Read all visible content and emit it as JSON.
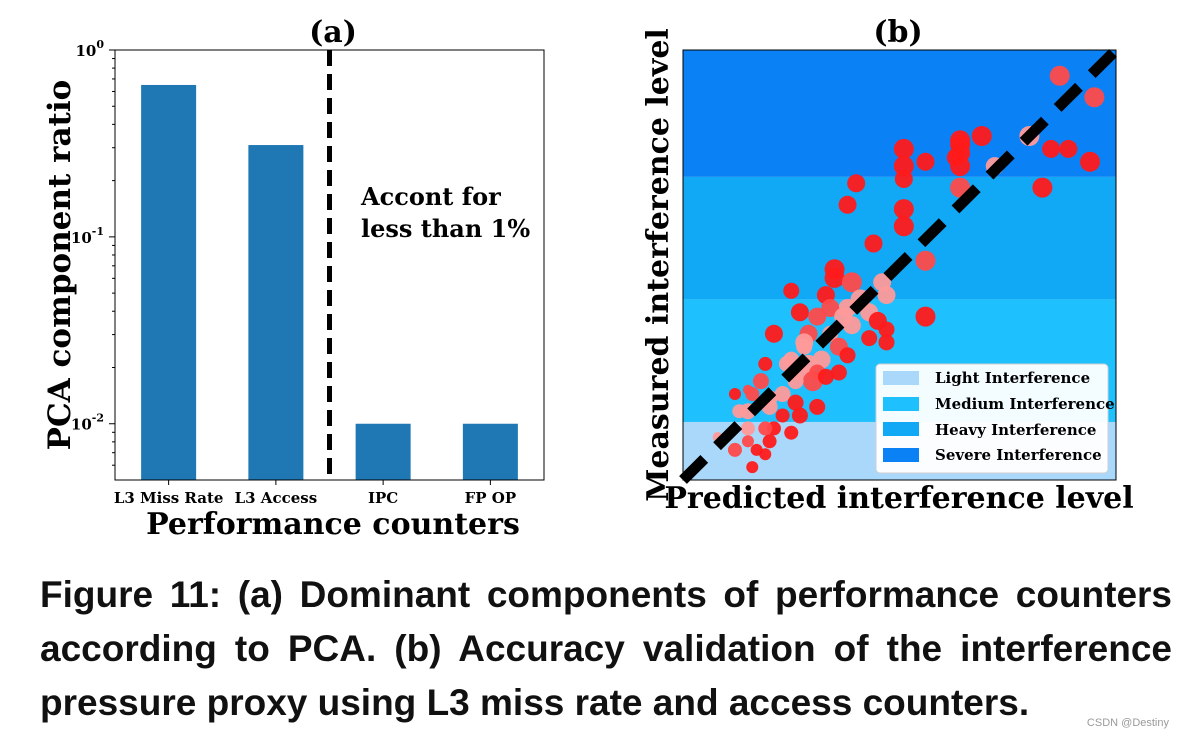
{
  "colors": {
    "bar": "#1f77b4",
    "light": "#a9d8fa",
    "medium": "#1ec0fd",
    "heavy": "#11a8f5",
    "severe": "#0a82f6",
    "divider": "#000000"
  },
  "chart_data": [
    {
      "type": "bar",
      "title": "(a)",
      "xlabel": "Performance counters",
      "ylabel": "PCA component ratio",
      "yscale": "log",
      "ylim": [
        0.005,
        1
      ],
      "yticks": [
        {
          "base": "10",
          "exp": "0"
        },
        {
          "base": "10",
          "exp": "-1"
        },
        {
          "base": "10",
          "exp": "-2"
        }
      ],
      "categories": [
        "L3 Miss Rate",
        "L3 Access",
        "IPC",
        "FP OP"
      ],
      "values": [
        0.65,
        0.31,
        0.01,
        0.01
      ],
      "divider_between": [
        1,
        2
      ],
      "annotation": [
        "Accont for",
        "less than 1%"
      ],
      "grid": false
    },
    {
      "type": "scatter",
      "title": "(b)",
      "xlabel": "Predicted interference level",
      "ylabel": "Measured interference level",
      "xlim": [
        0,
        1
      ],
      "ylim": [
        0,
        1
      ],
      "ticks": false,
      "bands": [
        {
          "name": "Light Interference",
          "from": 0.0,
          "to": 0.135,
          "color": "#a9d8fa"
        },
        {
          "name": "Medium Interference",
          "from": 0.135,
          "to": 0.42,
          "color": "#1ec0fd"
        },
        {
          "name": "Heavy Interference",
          "from": 0.42,
          "to": 0.705,
          "color": "#11a8f5"
        },
        {
          "name": "Severe Interference",
          "from": 0.705,
          "to": 1.0,
          "color": "#0a82f6"
        }
      ],
      "reference_line": {
        "x": [
          0,
          1
        ],
        "y": [
          0,
          1
        ],
        "style": "dashed",
        "color": "#000000"
      },
      "legend_position": "lower-right",
      "points": [
        {
          "x": 0.87,
          "y": 0.94,
          "s": 10
        },
        {
          "x": 0.95,
          "y": 0.89,
          "s": 10
        },
        {
          "x": 0.8,
          "y": 0.8,
          "s": 10
        },
        {
          "x": 0.85,
          "y": 0.77,
          "s": 9
        },
        {
          "x": 0.89,
          "y": 0.77,
          "s": 9
        },
        {
          "x": 0.94,
          "y": 0.74,
          "s": 10
        },
        {
          "x": 0.69,
          "y": 0.8,
          "s": 10
        },
        {
          "x": 0.64,
          "y": 0.79,
          "s": 10
        },
        {
          "x": 0.64,
          "y": 0.78,
          "s": 10
        },
        {
          "x": 0.64,
          "y": 0.76,
          "s": 10
        },
        {
          "x": 0.63,
          "y": 0.75,
          "s": 9
        },
        {
          "x": 0.72,
          "y": 0.73,
          "s": 9
        },
        {
          "x": 0.64,
          "y": 0.73,
          "s": 10
        },
        {
          "x": 0.56,
          "y": 0.74,
          "s": 9
        },
        {
          "x": 0.51,
          "y": 0.77,
          "s": 10
        },
        {
          "x": 0.51,
          "y": 0.73,
          "s": 10
        },
        {
          "x": 0.51,
          "y": 0.7,
          "s": 9
        },
        {
          "x": 0.83,
          "y": 0.68,
          "s": 10
        },
        {
          "x": 0.64,
          "y": 0.68,
          "s": 10
        },
        {
          "x": 0.4,
          "y": 0.69,
          "s": 9
        },
        {
          "x": 0.51,
          "y": 0.63,
          "s": 10
        },
        {
          "x": 0.51,
          "y": 0.59,
          "s": 10
        },
        {
          "x": 0.38,
          "y": 0.64,
          "s": 9
        },
        {
          "x": 0.44,
          "y": 0.55,
          "s": 9
        },
        {
          "x": 0.56,
          "y": 0.51,
          "s": 10
        },
        {
          "x": 0.35,
          "y": 0.49,
          "s": 10
        },
        {
          "x": 0.35,
          "y": 0.47,
          "s": 10
        },
        {
          "x": 0.39,
          "y": 0.46,
          "s": 10
        },
        {
          "x": 0.46,
          "y": 0.46,
          "s": 9
        },
        {
          "x": 0.33,
          "y": 0.43,
          "s": 9
        },
        {
          "x": 0.41,
          "y": 0.42,
          "s": 10
        },
        {
          "x": 0.47,
          "y": 0.43,
          "s": 9
        },
        {
          "x": 0.25,
          "y": 0.44,
          "s": 8
        },
        {
          "x": 0.38,
          "y": 0.4,
          "s": 9
        },
        {
          "x": 0.34,
          "y": 0.4,
          "s": 9
        },
        {
          "x": 0.43,
          "y": 0.39,
          "s": 9
        },
        {
          "x": 0.37,
          "y": 0.38,
          "s": 9
        },
        {
          "x": 0.45,
          "y": 0.37,
          "s": 9
        },
        {
          "x": 0.56,
          "y": 0.38,
          "s": 10
        },
        {
          "x": 0.47,
          "y": 0.35,
          "s": 8
        },
        {
          "x": 0.27,
          "y": 0.39,
          "s": 9
        },
        {
          "x": 0.31,
          "y": 0.38,
          "s": 9
        },
        {
          "x": 0.39,
          "y": 0.36,
          "s": 9
        },
        {
          "x": 0.43,
          "y": 0.33,
          "s": 8
        },
        {
          "x": 0.29,
          "y": 0.34,
          "s": 9
        },
        {
          "x": 0.34,
          "y": 0.34,
          "s": 8
        },
        {
          "x": 0.47,
          "y": 0.32,
          "s": 8
        },
        {
          "x": 0.36,
          "y": 0.31,
          "s": 9
        },
        {
          "x": 0.28,
          "y": 0.32,
          "s": 9
        },
        {
          "x": 0.21,
          "y": 0.34,
          "s": 9
        },
        {
          "x": 0.28,
          "y": 0.31,
          "s": 8
        },
        {
          "x": 0.32,
          "y": 0.28,
          "s": 9
        },
        {
          "x": 0.38,
          "y": 0.29,
          "s": 8
        },
        {
          "x": 0.25,
          "y": 0.28,
          "s": 8
        },
        {
          "x": 0.29,
          "y": 0.27,
          "s": 9
        },
        {
          "x": 0.24,
          "y": 0.27,
          "s": 8
        },
        {
          "x": 0.27,
          "y": 0.25,
          "s": 8
        },
        {
          "x": 0.31,
          "y": 0.25,
          "s": 8
        },
        {
          "x": 0.3,
          "y": 0.23,
          "s": 10
        },
        {
          "x": 0.33,
          "y": 0.24,
          "s": 8
        },
        {
          "x": 0.19,
          "y": 0.27,
          "s": 7
        },
        {
          "x": 0.36,
          "y": 0.25,
          "s": 8
        },
        {
          "x": 0.18,
          "y": 0.23,
          "s": 8
        },
        {
          "x": 0.26,
          "y": 0.23,
          "s": 8
        },
        {
          "x": 0.2,
          "y": 0.19,
          "s": 8
        },
        {
          "x": 0.15,
          "y": 0.21,
          "s": 5
        },
        {
          "x": 0.12,
          "y": 0.2,
          "s": 6
        },
        {
          "x": 0.16,
          "y": 0.2,
          "s": 7
        },
        {
          "x": 0.23,
          "y": 0.2,
          "s": 8
        },
        {
          "x": 0.26,
          "y": 0.18,
          "s": 8
        },
        {
          "x": 0.31,
          "y": 0.17,
          "s": 8
        },
        {
          "x": 0.2,
          "y": 0.17,
          "s": 8
        },
        {
          "x": 0.15,
          "y": 0.16,
          "s": 8
        },
        {
          "x": 0.23,
          "y": 0.15,
          "s": 7
        },
        {
          "x": 0.13,
          "y": 0.16,
          "s": 7
        },
        {
          "x": 0.27,
          "y": 0.15,
          "s": 8
        },
        {
          "x": 0.21,
          "y": 0.12,
          "s": 7
        },
        {
          "x": 0.19,
          "y": 0.12,
          "s": 7
        },
        {
          "x": 0.15,
          "y": 0.12,
          "s": 7
        },
        {
          "x": 0.25,
          "y": 0.11,
          "s": 7
        },
        {
          "x": 0.2,
          "y": 0.09,
          "s": 7
        },
        {
          "x": 0.15,
          "y": 0.09,
          "s": 6
        },
        {
          "x": 0.08,
          "y": 0.1,
          "s": 5
        },
        {
          "x": 0.12,
          "y": 0.07,
          "s": 7
        },
        {
          "x": 0.19,
          "y": 0.06,
          "s": 6
        },
        {
          "x": 0.17,
          "y": 0.07,
          "s": 6
        },
        {
          "x": 0.16,
          "y": 0.03,
          "s": 6
        }
      ]
    }
  ],
  "caption": {
    "lines": [
      "Figure 11:  (a) Dominant components of performance counters",
      "according to PCA. (b) Accuracy validation of the interference",
      "pressure proxy using L3 miss rate and access counters."
    ]
  },
  "watermark": "CSDN @Destiny"
}
